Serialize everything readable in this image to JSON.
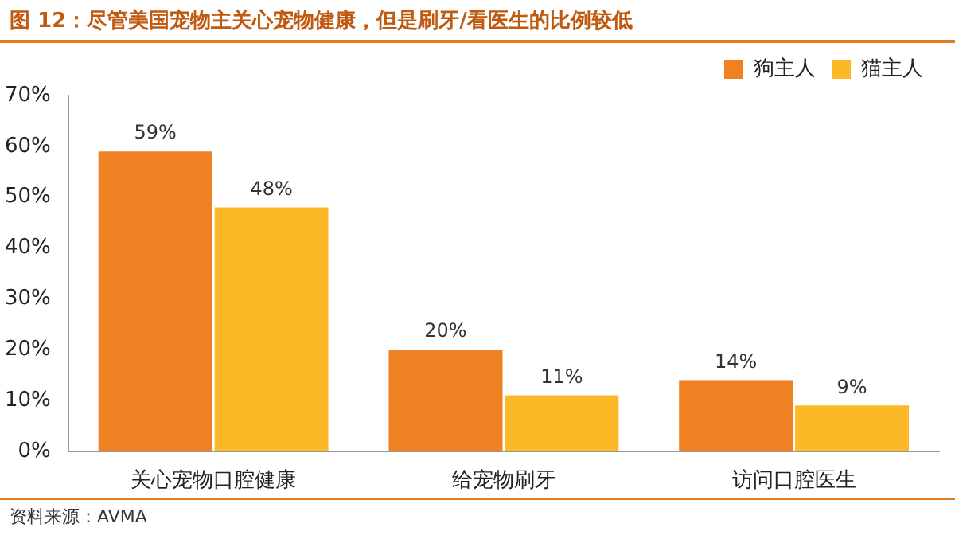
{
  "chart_data": {
    "type": "bar",
    "title": "图 12：尽管美国宠物主关心宠物健康，但是刷牙/看医生的比例较低",
    "categories": [
      "关心宠物口腔健康",
      "给宠物刷牙",
      "访问口腔医生"
    ],
    "series": [
      {
        "name": "狗主人",
        "color": "#f08122",
        "values": [
          59,
          20,
          14
        ],
        "value_labels": [
          "59%",
          "20%",
          "14%"
        ]
      },
      {
        "name": "猫主人",
        "color": "#fbb928",
        "values": [
          48,
          11,
          9
        ],
        "value_labels": [
          "48%",
          "11%",
          "9%"
        ]
      }
    ],
    "ylim": [
      0,
      70
    ],
    "yticks": [
      {
        "value": 0,
        "label": "0%"
      },
      {
        "value": 10,
        "label": "10%"
      },
      {
        "value": 20,
        "label": "20%"
      },
      {
        "value": 30,
        "label": "30%"
      },
      {
        "value": 40,
        "label": "40%"
      },
      {
        "value": 50,
        "label": "50%"
      },
      {
        "value": 60,
        "label": "60%"
      },
      {
        "value": 70,
        "label": "70%"
      }
    ],
    "grid": false,
    "legend": "top right",
    "annotations": [
      "资料来源：AVMA"
    ]
  }
}
